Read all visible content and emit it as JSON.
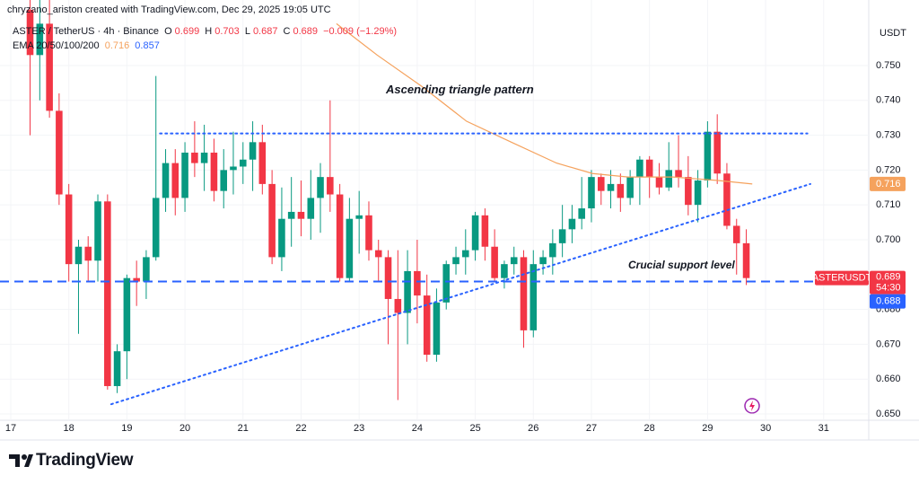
{
  "header": "chryzano_ariston created with TradingView.com, Dec 29, 2025 19:05 UTC",
  "chart_data": {
    "type": "candlestick",
    "symbol": "ASTER / TetherUS · 4h · Binance",
    "ohlc_labels": [
      "O",
      "H",
      "L",
      "C"
    ],
    "change": "−0.009 (−1.29%)",
    "x": [
      17.333,
      17.5,
      17.667,
      17.833,
      18,
      18.167,
      18.333,
      18.5,
      18.667,
      18.833,
      19,
      19.167,
      19.333,
      19.5,
      19.667,
      19.833,
      20,
      20.167,
      20.333,
      20.5,
      20.667,
      20.833,
      21,
      21.167,
      21.333,
      21.5,
      21.667,
      21.833,
      22,
      22.167,
      22.333,
      22.5,
      22.667,
      22.833,
      23,
      23.167,
      23.333,
      23.5,
      23.667,
      23.833,
      24,
      24.167,
      24.333,
      24.5,
      24.667,
      24.833,
      25,
      25.167,
      25.333,
      25.5,
      25.667,
      25.833,
      26,
      26.167,
      26.333,
      26.5,
      26.667,
      26.833,
      27,
      27.167,
      27.333,
      27.5,
      27.667,
      27.833,
      28,
      28.167,
      28.333,
      28.5,
      28.667,
      28.833,
      29,
      29.167,
      29.333,
      29.5,
      29.667
    ],
    "open": [
      0.766,
      0.753,
      0.762,
      0.737,
      0.713,
      0.693,
      0.698,
      0.694,
      0.711,
      0.658,
      0.668,
      0.689,
      0.688,
      0.695,
      0.712,
      0.722,
      0.712,
      0.725,
      0.722,
      0.725,
      0.714,
      0.72,
      0.721,
      0.723,
      0.728,
      0.716,
      0.695,
      0.706,
      0.708,
      0.706,
      0.712,
      0.718,
      0.713,
      0.689,
      0.706,
      0.707,
      0.697,
      0.695,
      0.683,
      0.679,
      0.691,
      0.684,
      0.667,
      0.682,
      0.693,
      0.695,
      0.697,
      0.707,
      0.698,
      0.689,
      0.693,
      0.695,
      0.674,
      0.693,
      0.695,
      0.699,
      0.703,
      0.706,
      0.709,
      0.718,
      0.714,
      0.716,
      0.712,
      0.718,
      0.723,
      0.718,
      0.715,
      0.72,
      0.718,
      0.71,
      0.717,
      0.731,
      0.719,
      0.704,
      0.699
    ],
    "high": [
      0.769,
      0.769,
      0.769,
      0.742,
      0.716,
      0.7,
      0.701,
      0.713,
      0.713,
      0.67,
      0.69,
      0.694,
      0.697,
      0.747,
      0.726,
      0.726,
      0.728,
      0.734,
      0.733,
      0.729,
      0.726,
      0.731,
      0.728,
      0.734,
      0.733,
      0.72,
      0.715,
      0.718,
      0.717,
      0.72,
      0.722,
      0.74,
      0.716,
      0.712,
      0.714,
      0.711,
      0.7,
      0.697,
      0.697,
      0.697,
      0.7,
      0.69,
      0.686,
      0.694,
      0.698,
      0.703,
      0.708,
      0.709,
      0.703,
      0.694,
      0.698,
      0.697,
      0.697,
      0.697,
      0.703,
      0.71,
      0.71,
      0.718,
      0.72,
      0.719,
      0.72,
      0.719,
      0.72,
      0.724,
      0.724,
      0.722,
      0.728,
      0.73,
      0.724,
      0.72,
      0.734,
      0.736,
      0.722,
      0.706,
      0.703
    ],
    "low": [
      0.73,
      0.74,
      0.735,
      0.71,
      0.688,
      0.673,
      0.688,
      0.688,
      0.657,
      0.656,
      0.66,
      0.681,
      0.683,
      0.694,
      0.708,
      0.707,
      0.708,
      0.718,
      0.714,
      0.711,
      0.709,
      0.713,
      0.716,
      0.714,
      0.713,
      0.693,
      0.691,
      0.698,
      0.701,
      0.7,
      0.702,
      0.708,
      0.688,
      0.688,
      0.696,
      0.694,
      0.688,
      0.67,
      0.654,
      0.67,
      0.676,
      0.665,
      0.665,
      0.68,
      0.69,
      0.69,
      0.694,
      0.694,
      0.688,
      0.686,
      0.69,
      0.669,
      0.672,
      0.69,
      0.69,
      0.695,
      0.699,
      0.703,
      0.705,
      0.71,
      0.709,
      0.708,
      0.71,
      0.71,
      0.712,
      0.713,
      0.714,
      0.715,
      0.707,
      0.705,
      0.715,
      0.716,
      0.703,
      0.69,
      0.687
    ],
    "close": [
      0.753,
      0.762,
      0.737,
      0.713,
      0.693,
      0.698,
      0.694,
      0.711,
      0.658,
      0.668,
      0.689,
      0.688,
      0.695,
      0.712,
      0.722,
      0.712,
      0.725,
      0.722,
      0.725,
      0.714,
      0.72,
      0.721,
      0.723,
      0.728,
      0.716,
      0.695,
      0.706,
      0.708,
      0.706,
      0.712,
      0.718,
      0.713,
      0.689,
      0.706,
      0.707,
      0.697,
      0.695,
      0.683,
      0.679,
      0.691,
      0.684,
      0.667,
      0.682,
      0.693,
      0.695,
      0.697,
      0.707,
      0.698,
      0.689,
      0.693,
      0.695,
      0.674,
      0.693,
      0.695,
      0.699,
      0.703,
      0.706,
      0.709,
      0.718,
      0.714,
      0.716,
      0.712,
      0.718,
      0.723,
      0.718,
      0.715,
      0.72,
      0.718,
      0.71,
      0.717,
      0.731,
      0.719,
      0.704,
      0.699,
      0.689
    ],
    "up_color": "#089981",
    "down_color": "#f23645",
    "xlim": [
      16.815,
      31.776
    ],
    "xticks": [
      17,
      18,
      19,
      20,
      21,
      22,
      23,
      24,
      25,
      26,
      27,
      28,
      29,
      30,
      31
    ],
    "ylim": [
      0.6482,
      0.7688
    ],
    "yticks": [
      {
        "value": 0.65,
        "label": "0.650"
      },
      {
        "value": 0.66,
        "label": "0.660"
      },
      {
        "value": 0.67,
        "label": "0.670"
      },
      {
        "value": 0.68,
        "label": "0.680"
      },
      {
        "value": 0.7,
        "label": "0.700"
      },
      {
        "value": 0.71,
        "label": "0.710"
      },
      {
        "value": 0.72,
        "label": "0.720"
      },
      {
        "value": 0.73,
        "label": "0.730"
      },
      {
        "value": 0.74,
        "label": "0.740"
      },
      {
        "value": 0.75,
        "label": "0.750"
      }
    ],
    "y_axis_unit": "USDT",
    "indicator": {
      "name": "EMA 20/50/100/200",
      "values": [
        0.716,
        0.857
      ],
      "colors": [
        "#f5a25d",
        "#2962ff"
      ],
      "line": {
        "x": [
          22.61,
          23.31,
          24.08,
          24.85,
          25.62,
          26.4,
          27.02,
          27.63,
          28.41,
          29.18,
          29.77
        ],
        "values": [
          0.762,
          0.753,
          0.744,
          0.734,
          0.728,
          0.722,
          0.719,
          0.718,
          0.718,
          0.717,
          0.716
        ]
      }
    },
    "trendlines": [
      {
        "x": [
          19.57,
          30.72
        ],
        "values": [
          0.7305,
          0.7305
        ],
        "color": "#2962ff"
      },
      {
        "x": [
          18.73,
          30.77
        ],
        "values": [
          0.6528,
          0.716
        ],
        "color": "#2962ff"
      }
    ],
    "support_level": {
      "value": 0.688,
      "color": "#2962ff"
    },
    "symbol_tag": "ASTERUSDT",
    "countdown": "54:30",
    "annotations": [
      "Ascending triangle pattern",
      "Crucial support level"
    ]
  },
  "footer": {
    "logo": "TradingView"
  }
}
